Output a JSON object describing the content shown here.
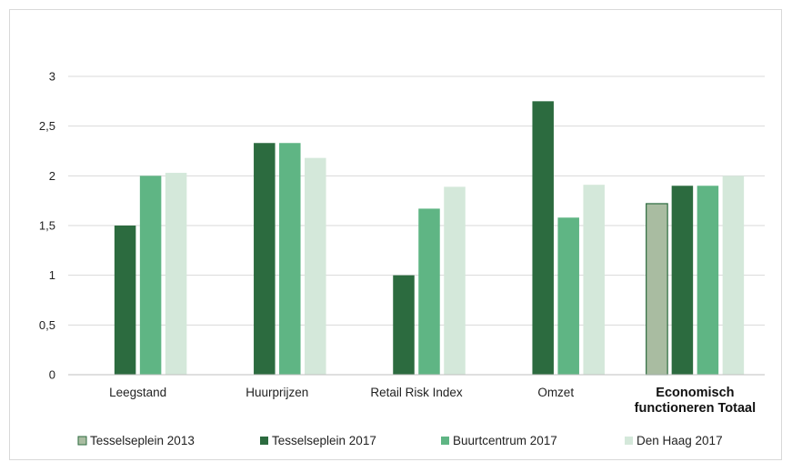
{
  "chart_data": {
    "type": "bar",
    "categories": [
      "Leegstand",
      "Huurprijzen",
      "Retail Risk Index",
      "Omzet",
      "Economisch functioneren Totaal"
    ],
    "category_lines": [
      [
        "Leegstand"
      ],
      [
        "Huurprijzen"
      ],
      [
        "Retail Risk Index"
      ],
      [
        "Omzet"
      ],
      [
        "Economisch",
        "functioneren Totaal"
      ]
    ],
    "bold_categories": [
      false,
      false,
      false,
      false,
      true
    ],
    "series": [
      {
        "name": "Tesselseplein 2013",
        "color": "#a9bca1",
        "values": [
          null,
          null,
          null,
          null,
          1.72
        ]
      },
      {
        "name": "Tesselseplein 2017",
        "color": "#2c6b3f",
        "values": [
          1.5,
          2.33,
          1.0,
          2.75,
          1.9
        ]
      },
      {
        "name": "Buurtcentrum 2017",
        "color": "#5fb584",
        "values": [
          2.0,
          2.33,
          1.67,
          1.58,
          1.9
        ]
      },
      {
        "name": "Den Haag 2017",
        "color": "#d4e8da",
        "values": [
          2.03,
          2.18,
          1.89,
          1.91,
          2.0
        ]
      }
    ],
    "y_ticks": [
      "0",
      "0,5",
      "1",
      "1,5",
      "2",
      "2,5",
      "3"
    ],
    "ylim": [
      0,
      3
    ],
    "title": "",
    "xlabel": "",
    "ylabel": "",
    "grid": true,
    "legend_position": "bottom"
  }
}
